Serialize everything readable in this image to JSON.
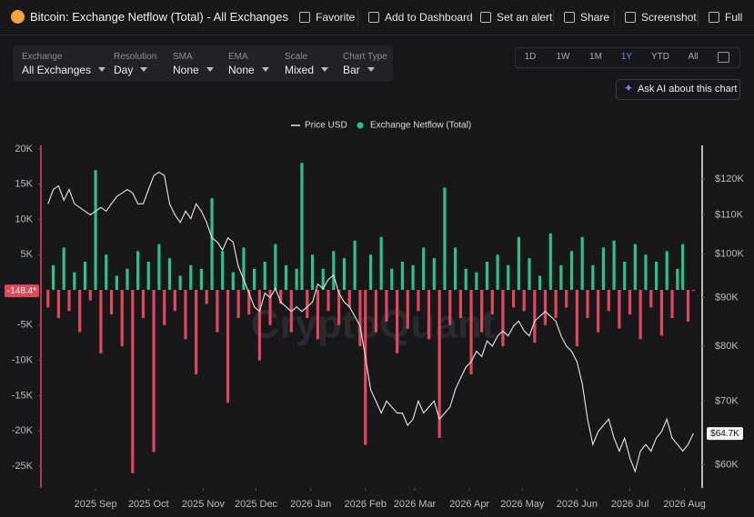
{
  "header": {
    "title": "Bitcoin: Exchange Netflow (Total) - All Exchanges",
    "actions": [
      "Favorite",
      "Add to Dashboard",
      "Set an alert",
      "Share",
      "Screenshot",
      "Full"
    ]
  },
  "controls": [
    {
      "label": "Exchange",
      "value": "All Exchanges"
    },
    {
      "label": "Resolution",
      "value": "Day"
    },
    {
      "label": "SMA",
      "value": "None"
    },
    {
      "label": "EMA",
      "value": "None"
    },
    {
      "label": "Scale",
      "value": "Mixed"
    },
    {
      "label": "Chart Type",
      "value": "Bar"
    }
  ],
  "ranges": {
    "options": [
      "1D",
      "1W",
      "1M",
      "1Y",
      "YTD",
      "All"
    ],
    "active": 3
  },
  "ask_ai": "Ask AI about this chart",
  "watermark": "CryptoQuant",
  "chart_data": {
    "type": "bar-line",
    "x": [
      4,
      7,
      10,
      13,
      16,
      19,
      22,
      25,
      28,
      31,
      34,
      37,
      40,
      43,
      46,
      49,
      52,
      55,
      58,
      61,
      64,
      67,
      70,
      73,
      76,
      79,
      82,
      85,
      88,
      91,
      94,
      97,
      100,
      103,
      106,
      109,
      112,
      115,
      118,
      121,
      124,
      127,
      130,
      133,
      136,
      139,
      142,
      145,
      148,
      151,
      154,
      157,
      160,
      163,
      166,
      169,
      172,
      175,
      178,
      181,
      184,
      187,
      190,
      193,
      196,
      199,
      202,
      205,
      208,
      211,
      214,
      217,
      220,
      223,
      226,
      229,
      232,
      235,
      238,
      241,
      244,
      247,
      250,
      253,
      256,
      259,
      262,
      265,
      268,
      271,
      274,
      277,
      280,
      283,
      286,
      289,
      292,
      295,
      298,
      301,
      304,
      307,
      310,
      313,
      316,
      319,
      322,
      325,
      328,
      331,
      334,
      337,
      340,
      343,
      346,
      349,
      352,
      355,
      358,
      361,
      364,
      367,
      370
    ],
    "xlim": [
      0,
      375
    ],
    "xticks": [
      {
        "value": 31,
        "label": "2025 Sep"
      },
      {
        "value": 61,
        "label": "2025 Oct"
      },
      {
        "value": 92,
        "label": "2025 Nov"
      },
      {
        "value": 122,
        "label": "2025 Dec"
      },
      {
        "value": 153,
        "label": "2026 Jan"
      },
      {
        "value": 184,
        "label": "2026 Feb"
      },
      {
        "value": 212,
        "label": "2026 Mar"
      },
      {
        "value": 243,
        "label": "2026 Apr"
      },
      {
        "value": 273,
        "label": "2026 May"
      },
      {
        "value": 304,
        "label": "2026 Jun"
      },
      {
        "value": 334,
        "label": "2026 Jul"
      },
      {
        "value": 365,
        "label": "2026 Aug"
      }
    ],
    "ylim": [
      -28100,
      20500
    ],
    "yticks": [
      {
        "value": 20000,
        "label": "20K"
      },
      {
        "value": 15000,
        "label": "15K"
      },
      {
        "value": 10000,
        "label": "10K"
      },
      {
        "value": 5000,
        "label": "5K"
      },
      {
        "value": -5000,
        "label": "-5K"
      },
      {
        "value": -10000,
        "label": "-10K"
      },
      {
        "value": -15000,
        "label": "-15K"
      },
      {
        "value": -20000,
        "label": "-20K"
      },
      {
        "value": -25000,
        "label": "-25K"
      }
    ],
    "y2lim": [
      56700,
      130200
    ],
    "y2_scale": "log",
    "y2ticks": [
      {
        "value": 120000,
        "label": "$120K"
      },
      {
        "value": 110000,
        "label": "$110K"
      },
      {
        "value": 100000,
        "label": "$100K"
      },
      {
        "value": 90000,
        "label": "$90K"
      },
      {
        "value": 80000,
        "label": "$80K"
      },
      {
        "value": 70000,
        "label": "$70K"
      },
      {
        "value": 60000,
        "label": "$60K"
      }
    ],
    "series": [
      {
        "name": "Price USD",
        "type": "line",
        "axis": "y2",
        "color": "#e8e8e8",
        "last_label": "$64.7K",
        "values": [
          113000,
          117000,
          118000,
          114000,
          117000,
          113000,
          112000,
          111000,
          110000,
          111000,
          112000,
          111000,
          113000,
          115000,
          116000,
          117000,
          116000,
          113000,
          113000,
          117000,
          121000,
          122000,
          121000,
          113000,
          110000,
          108000,
          111000,
          109000,
          113000,
          111000,
          108000,
          104000,
          103000,
          101000,
          104000,
          103000,
          97000,
          94000,
          91000,
          88000,
          87000,
          91000,
          90000,
          92000,
          89000,
          88000,
          87000,
          88000,
          87000,
          88000,
          89000,
          93000,
          92000,
          94000,
          95000,
          91000,
          89000,
          88000,
          86000,
          84000,
          78000,
          72000,
          70000,
          68000,
          70000,
          69000,
          68000,
          68000,
          66000,
          67000,
          70000,
          68000,
          69000,
          70000,
          67000,
          68000,
          69000,
          72000,
          74000,
          76000,
          77000,
          79000,
          78000,
          81000,
          80000,
          82000,
          83000,
          82000,
          84000,
          85000,
          83000,
          82000,
          85000,
          86000,
          87000,
          86000,
          85000,
          82000,
          80000,
          79000,
          77000,
          73000,
          67000,
          63000,
          65000,
          66000,
          67000,
          64000,
          62000,
          64000,
          61000,
          59000,
          62000,
          63000,
          62000,
          64000,
          65000,
          67000,
          64000,
          63000,
          62000,
          63000,
          64700
        ]
      },
      {
        "name": "Exchange Netflow (Total)",
        "type": "bar",
        "color": "#2fbf8a",
        "negative_color": "#e0485c",
        "last_label": "-148.4*",
        "values": [
          -2500,
          3500,
          -4000,
          6000,
          -3000,
          2500,
          -6000,
          4000,
          -1500,
          17000,
          -9000,
          5000,
          -3500,
          2000,
          -8000,
          3000,
          -26000,
          5500,
          -4000,
          4000,
          -23000,
          6500,
          -5000,
          4500,
          -3000,
          2000,
          -7000,
          3500,
          -12000,
          3000,
          -2000,
          13000,
          -6000,
          5500,
          -16000,
          2500,
          -4000,
          6000,
          -3500,
          3000,
          -10000,
          4000,
          -5000,
          6500,
          -2000,
          3500,
          -6000,
          3000,
          18000,
          -4000,
          5000,
          -7000,
          3000,
          -3000,
          5500,
          -5000,
          4500,
          -2500,
          7000,
          -8000,
          -22000,
          5000,
          -6000,
          7500,
          -4500,
          3000,
          -9000,
          4000,
          -5500,
          3500,
          -3000,
          6000,
          -7000,
          4500,
          -21000,
          14500,
          -5000,
          6000,
          -4000,
          3000,
          -12000,
          2500,
          -6000,
          4000,
          -3500,
          5000,
          -8000,
          3500,
          -2500,
          7500,
          -3000,
          4500,
          -7500,
          2000,
          -5000,
          8000,
          -4000,
          3500,
          -2500,
          5500,
          -8000,
          7500,
          -4000,
          3500,
          -6000,
          6000,
          -3000,
          7000,
          -5500,
          4000,
          -3500,
          6500,
          -7000,
          5000,
          -2500,
          4000,
          -6500,
          5500,
          -4000,
          3000,
          6500,
          -4500,
          -148.4
        ]
      }
    ]
  }
}
